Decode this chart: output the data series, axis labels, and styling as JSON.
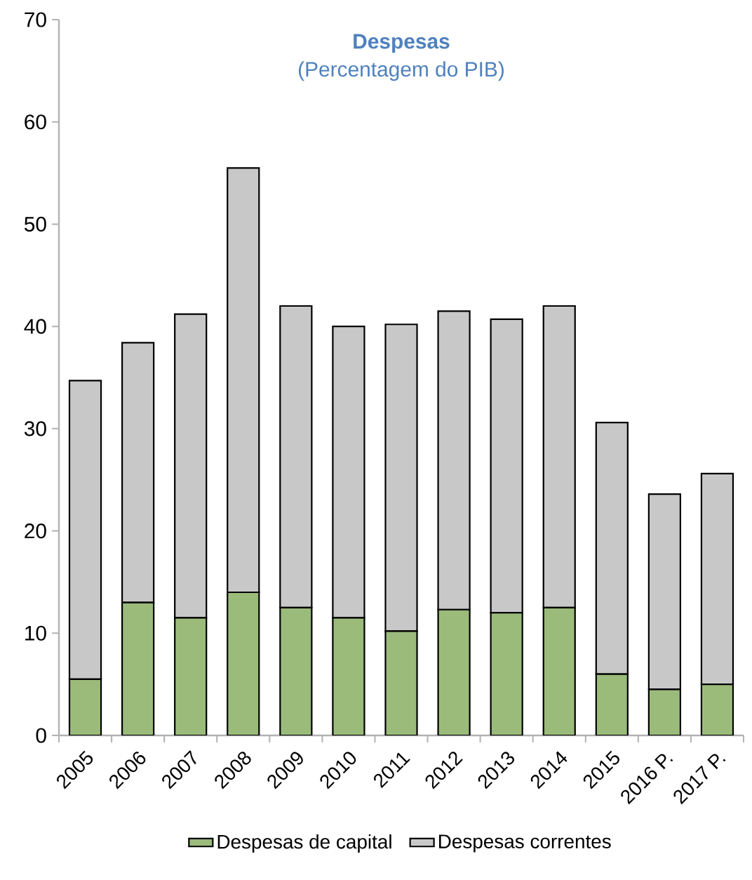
{
  "chart_data": {
    "type": "bar",
    "stacked": true,
    "title": "Despesas",
    "subtitle": "(Percentagem do PIB)",
    "categories": [
      "2005",
      "2006",
      "2007",
      "2008",
      "2009",
      "2010",
      "2011",
      "2012",
      "2013",
      "2014",
      "2015",
      "2016 P.",
      "2017 P."
    ],
    "series": [
      {
        "name": "Despesas de capital",
        "color": "#9bbb7b",
        "values": [
          5.5,
          13.0,
          11.5,
          14.0,
          12.5,
          11.5,
          10.2,
          12.3,
          12.0,
          12.5,
          6.0,
          4.5,
          5.0
        ]
      },
      {
        "name": "Despesas correntes",
        "color": "#c8c8c8",
        "values": [
          29.2,
          25.4,
          29.7,
          41.5,
          29.5,
          28.5,
          30.0,
          29.2,
          28.7,
          29.5,
          24.6,
          19.1,
          20.6
        ]
      }
    ],
    "ylim": [
      0,
      70
    ],
    "yticks": [
      0,
      10,
      20,
      30,
      40,
      50,
      60,
      70
    ],
    "grid": false,
    "legend": "bottom"
  }
}
